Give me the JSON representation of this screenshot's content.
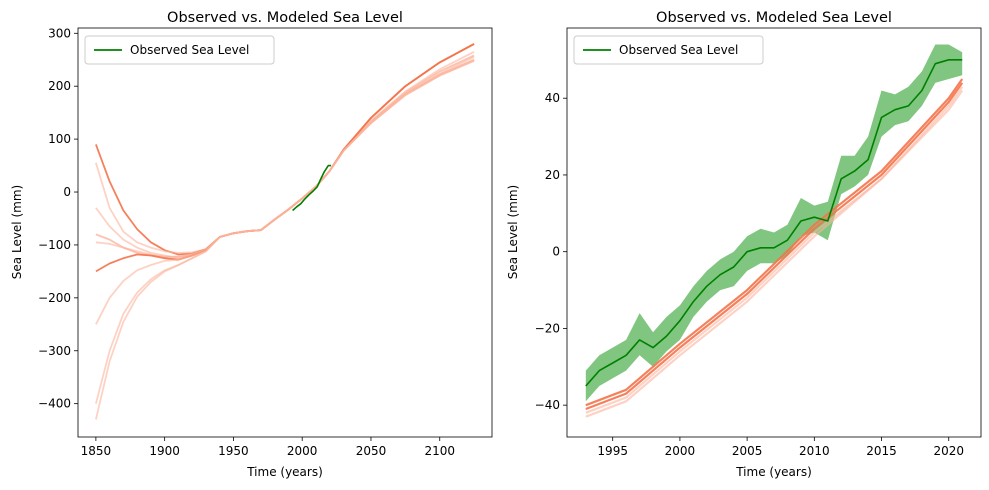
{
  "charts": [
    {
      "title": "Observed vs. Modeled Sea Level",
      "xlabel": "Time (years)",
      "ylabel": "Sea Level (mm)",
      "legend_label": "Observed Sea Level",
      "xticks": [
        "1850",
        "1900",
        "1950",
        "2000",
        "2050",
        "2100"
      ],
      "yticks": [
        "300",
        "200",
        "100",
        "0",
        "−100",
        "−200",
        "−300",
        "−400"
      ]
    },
    {
      "title": "Observed vs. Modeled Sea Level",
      "xlabel": "Time (years)",
      "ylabel": "Sea Level (mm)",
      "legend_label": "Observed Sea Level",
      "xticks": [
        "1995",
        "2000",
        "2005",
        "2010",
        "2015",
        "2020"
      ],
      "yticks": [
        "40",
        "20",
        "0",
        "−20",
        "−40"
      ]
    }
  ],
  "chart_data": [
    {
      "type": "line",
      "title": "Observed vs. Modeled Sea Level",
      "xlabel": "Time (years)",
      "ylabel": "Sea Level (mm)",
      "xlim": [
        1837,
        2138
      ],
      "ylim": [
        -463,
        310
      ],
      "legend": "upper-left",
      "colors": {
        "observed": "#008000",
        "model": "#f4734a",
        "model_light": "#fbb49c"
      },
      "observed": {
        "name": "Observed Sea Level",
        "x": [
          1993,
          1996,
          1999,
          2002,
          2005,
          2008,
          2011,
          2013,
          2016,
          2019,
          2021
        ],
        "y": [
          -35,
          -28,
          -22,
          -13,
          -5,
          2,
          10,
          22,
          38,
          50,
          50
        ]
      },
      "model_runs": [
        {
          "x": [
            1850,
            1860,
            1870,
            1880,
            1890,
            1900,
            1910,
            1920,
            1930,
            1940,
            1950,
            1960,
            1970,
            1980,
            1990,
            2000,
            2010,
            2020,
            2030,
            2050,
            2075,
            2100,
            2125
          ],
          "y": [
            90,
            20,
            -35,
            -70,
            -95,
            -110,
            -118,
            -116,
            -108,
            -85,
            -78,
            -74,
            -72,
            -52,
            -33,
            -12,
            10,
            40,
            80,
            140,
            200,
            245,
            280
          ],
          "strength": "strong"
        },
        {
          "x": [
            1850,
            1860,
            1870,
            1880,
            1890,
            1900,
            1910,
            1920,
            1930,
            1940,
            1950,
            1960,
            1970,
            1980,
            1990,
            2000,
            2010,
            2020,
            2030,
            2050,
            2075,
            2100,
            2125
          ],
          "y": [
            55,
            -30,
            -75,
            -95,
            -105,
            -112,
            -115,
            -114,
            -108,
            -85,
            -78,
            -74,
            -72,
            -52,
            -33,
            -12,
            10,
            40,
            78,
            135,
            190,
            232,
            265
          ],
          "strength": "light"
        },
        {
          "x": [
            1850,
            1860,
            1870,
            1880,
            1890,
            1900,
            1910,
            1920,
            1930,
            1940,
            1950,
            1960,
            1970,
            1980,
            1990,
            2000,
            2010,
            2020,
            2030,
            2050,
            2075,
            2100,
            2125
          ],
          "y": [
            -30,
            -65,
            -90,
            -105,
            -115,
            -120,
            -125,
            -120,
            -110,
            -85,
            -78,
            -74,
            -72,
            -52,
            -33,
            -12,
            10,
            40,
            78,
            132,
            185,
            222,
            250
          ],
          "strength": "light"
        },
        {
          "x": [
            1850,
            1860,
            1870,
            1880,
            1890,
            1900,
            1910,
            1920,
            1930,
            1940,
            1950,
            1960,
            1970,
            1980,
            1990,
            2000,
            2010,
            2020,
            2030,
            2050,
            2075,
            2100,
            2125
          ],
          "y": [
            -80,
            -90,
            -105,
            -115,
            -120,
            -122,
            -122,
            -118,
            -110,
            -85,
            -78,
            -74,
            -72,
            -52,
            -33,
            -12,
            10,
            40,
            78,
            133,
            188,
            228,
            258
          ],
          "strength": "medium"
        },
        {
          "x": [
            1850,
            1860,
            1870,
            1880,
            1890,
            1900,
            1910,
            1920,
            1930,
            1940,
            1950,
            1960,
            1970,
            1980,
            1990,
            2000,
            2010,
            2020,
            2030,
            2050,
            2075,
            2100,
            2125
          ],
          "y": [
            -95,
            -98,
            -105,
            -112,
            -118,
            -122,
            -123,
            -118,
            -110,
            -85,
            -78,
            -74,
            -72,
            -52,
            -33,
            -12,
            10,
            40,
            78,
            132,
            185,
            222,
            250
          ],
          "strength": "light"
        },
        {
          "x": [
            1850,
            1860,
            1870,
            1880,
            1890,
            1900,
            1910,
            1920,
            1930,
            1940,
            1950,
            1960,
            1970,
            1980,
            1990,
            2000,
            2010,
            2020,
            2030,
            2050,
            2075,
            2100,
            2125
          ],
          "y": [
            -150,
            -135,
            -125,
            -118,
            -120,
            -125,
            -128,
            -120,
            -110,
            -85,
            -78,
            -74,
            -72,
            -52,
            -33,
            -12,
            10,
            40,
            80,
            140,
            200,
            245,
            280
          ],
          "strength": "strong"
        },
        {
          "x": [
            1850,
            1860,
            1870,
            1880,
            1890,
            1900,
            1910,
            1920,
            1930,
            1940,
            1950,
            1960,
            1970,
            1980,
            1990,
            2000,
            2010,
            2020,
            2030,
            2050,
            2075,
            2100,
            2125
          ],
          "y": [
            -250,
            -200,
            -168,
            -148,
            -138,
            -130,
            -128,
            -120,
            -110,
            -85,
            -78,
            -74,
            -72,
            -52,
            -33,
            -12,
            10,
            40,
            78,
            132,
            185,
            224,
            255
          ],
          "strength": "light"
        },
        {
          "x": [
            1850,
            1860,
            1870,
            1880,
            1890,
            1900,
            1910,
            1920,
            1930,
            1940,
            1950,
            1960,
            1970,
            1980,
            1990,
            2000,
            2010,
            2020,
            2030,
            2050,
            2075,
            2100,
            2125
          ],
          "y": [
            -400,
            -300,
            -230,
            -190,
            -165,
            -148,
            -138,
            -125,
            -112,
            -85,
            -78,
            -74,
            -72,
            -52,
            -33,
            -12,
            10,
            40,
            78,
            130,
            183,
            220,
            248
          ],
          "strength": "light"
        },
        {
          "x": [
            1850,
            1860,
            1870,
            1880,
            1890,
            1900,
            1910,
            1920,
            1930,
            1940,
            1950,
            1960,
            1970,
            1980,
            1990,
            2000,
            2010,
            2020,
            2030,
            2050,
            2075,
            2100,
            2125
          ],
          "y": [
            -430,
            -320,
            -245,
            -198,
            -170,
            -150,
            -138,
            -125,
            -112,
            -85,
            -78,
            -74,
            -72,
            -52,
            -33,
            -12,
            10,
            40,
            78,
            130,
            183,
            220,
            248
          ],
          "strength": "light"
        }
      ]
    },
    {
      "type": "line",
      "title": "Observed vs. Modeled Sea Level",
      "xlabel": "Time (years)",
      "ylabel": "Sea Level (mm)",
      "xlim": [
        1991.6,
        2022.4
      ],
      "ylim": [
        -48.3,
        58.3
      ],
      "legend": "upper-left",
      "colors": {
        "observed": "#008000",
        "band": "#2ca02c",
        "model": "#f4734a",
        "model_light": "#fbb49c"
      },
      "observed": {
        "name": "Observed Sea Level",
        "x": [
          1993,
          1994,
          1995,
          1996,
          1997,
          1998,
          1999,
          2000,
          2001,
          2002,
          2003,
          2004,
          2005,
          2006,
          2007,
          2008,
          2009,
          2010,
          2011,
          2012,
          2013,
          2014,
          2015,
          2016,
          2017,
          2018,
          2019,
          2020,
          2021
        ],
        "y": [
          -35,
          -31,
          -29,
          -27,
          -23,
          -25,
          -22,
          -18,
          -13,
          -9,
          -6,
          -4,
          0,
          1,
          1,
          3,
          8,
          9,
          8,
          19,
          21,
          24,
          35,
          37,
          38,
          42,
          49,
          50,
          50
        ],
        "lower": [
          -39,
          -35,
          -33,
          -31,
          -27,
          -30,
          -26,
          -23,
          -17,
          -13,
          -10,
          -9,
          -5,
          -3,
          -3,
          -1,
          4,
          5,
          3,
          15,
          17,
          20,
          30,
          33,
          34,
          38,
          44,
          45,
          46
        ],
        "upper": [
          -31,
          -27,
          -25,
          -23,
          -16,
          -21,
          -17,
          -14,
          -9,
          -5,
          -2,
          0,
          4,
          6,
          5,
          7,
          14,
          12,
          13,
          25,
          25,
          30,
          42,
          41,
          43,
          47,
          54,
          54,
          52
        ]
      },
      "model_runs": [
        {
          "x": [
            1993,
            1996,
            2000,
            2005,
            2010,
            2015,
            2020,
            2021
          ],
          "y": [
            -40,
            -36,
            -24,
            -10,
            7,
            21,
            40,
            45
          ],
          "strength": "strong"
        },
        {
          "x": [
            1993,
            1996,
            2000,
            2005,
            2010,
            2015,
            2020,
            2021
          ],
          "y": [
            -41,
            -37,
            -25,
            -11,
            6,
            20,
            39,
            44
          ],
          "strength": "strong"
        },
        {
          "x": [
            1993,
            1996,
            2000,
            2005,
            2010,
            2015,
            2020,
            2021
          ],
          "y": [
            -42,
            -38,
            -26,
            -12,
            5,
            19,
            38,
            43
          ],
          "strength": "light"
        },
        {
          "x": [
            1993,
            1996,
            2000,
            2005,
            2010,
            2015,
            2020,
            2021
          ],
          "y": [
            -43,
            -39,
            -27,
            -13,
            4,
            19,
            37,
            42
          ],
          "strength": "light"
        }
      ]
    }
  ]
}
